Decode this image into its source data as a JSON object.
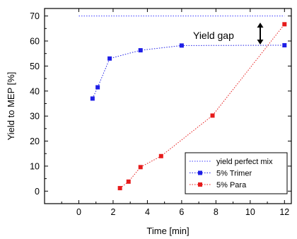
{
  "chart_data": {
    "type": "scatter",
    "title": "",
    "xlabel": "Time [min]",
    "ylabel": "Yield to MEP [%]",
    "xlim": [
      -2,
      12.4
    ],
    "ylim": [
      -5,
      73
    ],
    "xticks": [
      0,
      2,
      4,
      6,
      8,
      10,
      12
    ],
    "yticks": [
      0,
      10,
      20,
      30,
      40,
      50,
      60,
      70
    ],
    "grid": false,
    "legend_position": "bottom-right",
    "series": [
      {
        "name": "yield perfect mix",
        "style": "dotted-line",
        "color": "#3a3aff",
        "x": [
          0,
          12
        ],
        "y": [
          70,
          70
        ]
      },
      {
        "name": "5% Trimer",
        "style": "square-markers-dotted-line",
        "color": "#1f1fe6",
        "x": [
          0.8,
          1.1,
          1.8,
          3.6,
          6.0,
          12.0
        ],
        "y": [
          37.0,
          41.5,
          53.0,
          56.3,
          58.2,
          58.3
        ]
      },
      {
        "name": "5% Para",
        "style": "square-markers-dotted-line",
        "color": "#e61b1b",
        "x": [
          2.4,
          2.9,
          3.6,
          4.8,
          7.8,
          12.0
        ],
        "y": [
          1.2,
          3.8,
          9.6,
          14.0,
          30.2,
          66.7
        ]
      }
    ],
    "annotations": [
      {
        "text": "Yield gap",
        "x": 10.5,
        "y": 64.5
      }
    ]
  }
}
